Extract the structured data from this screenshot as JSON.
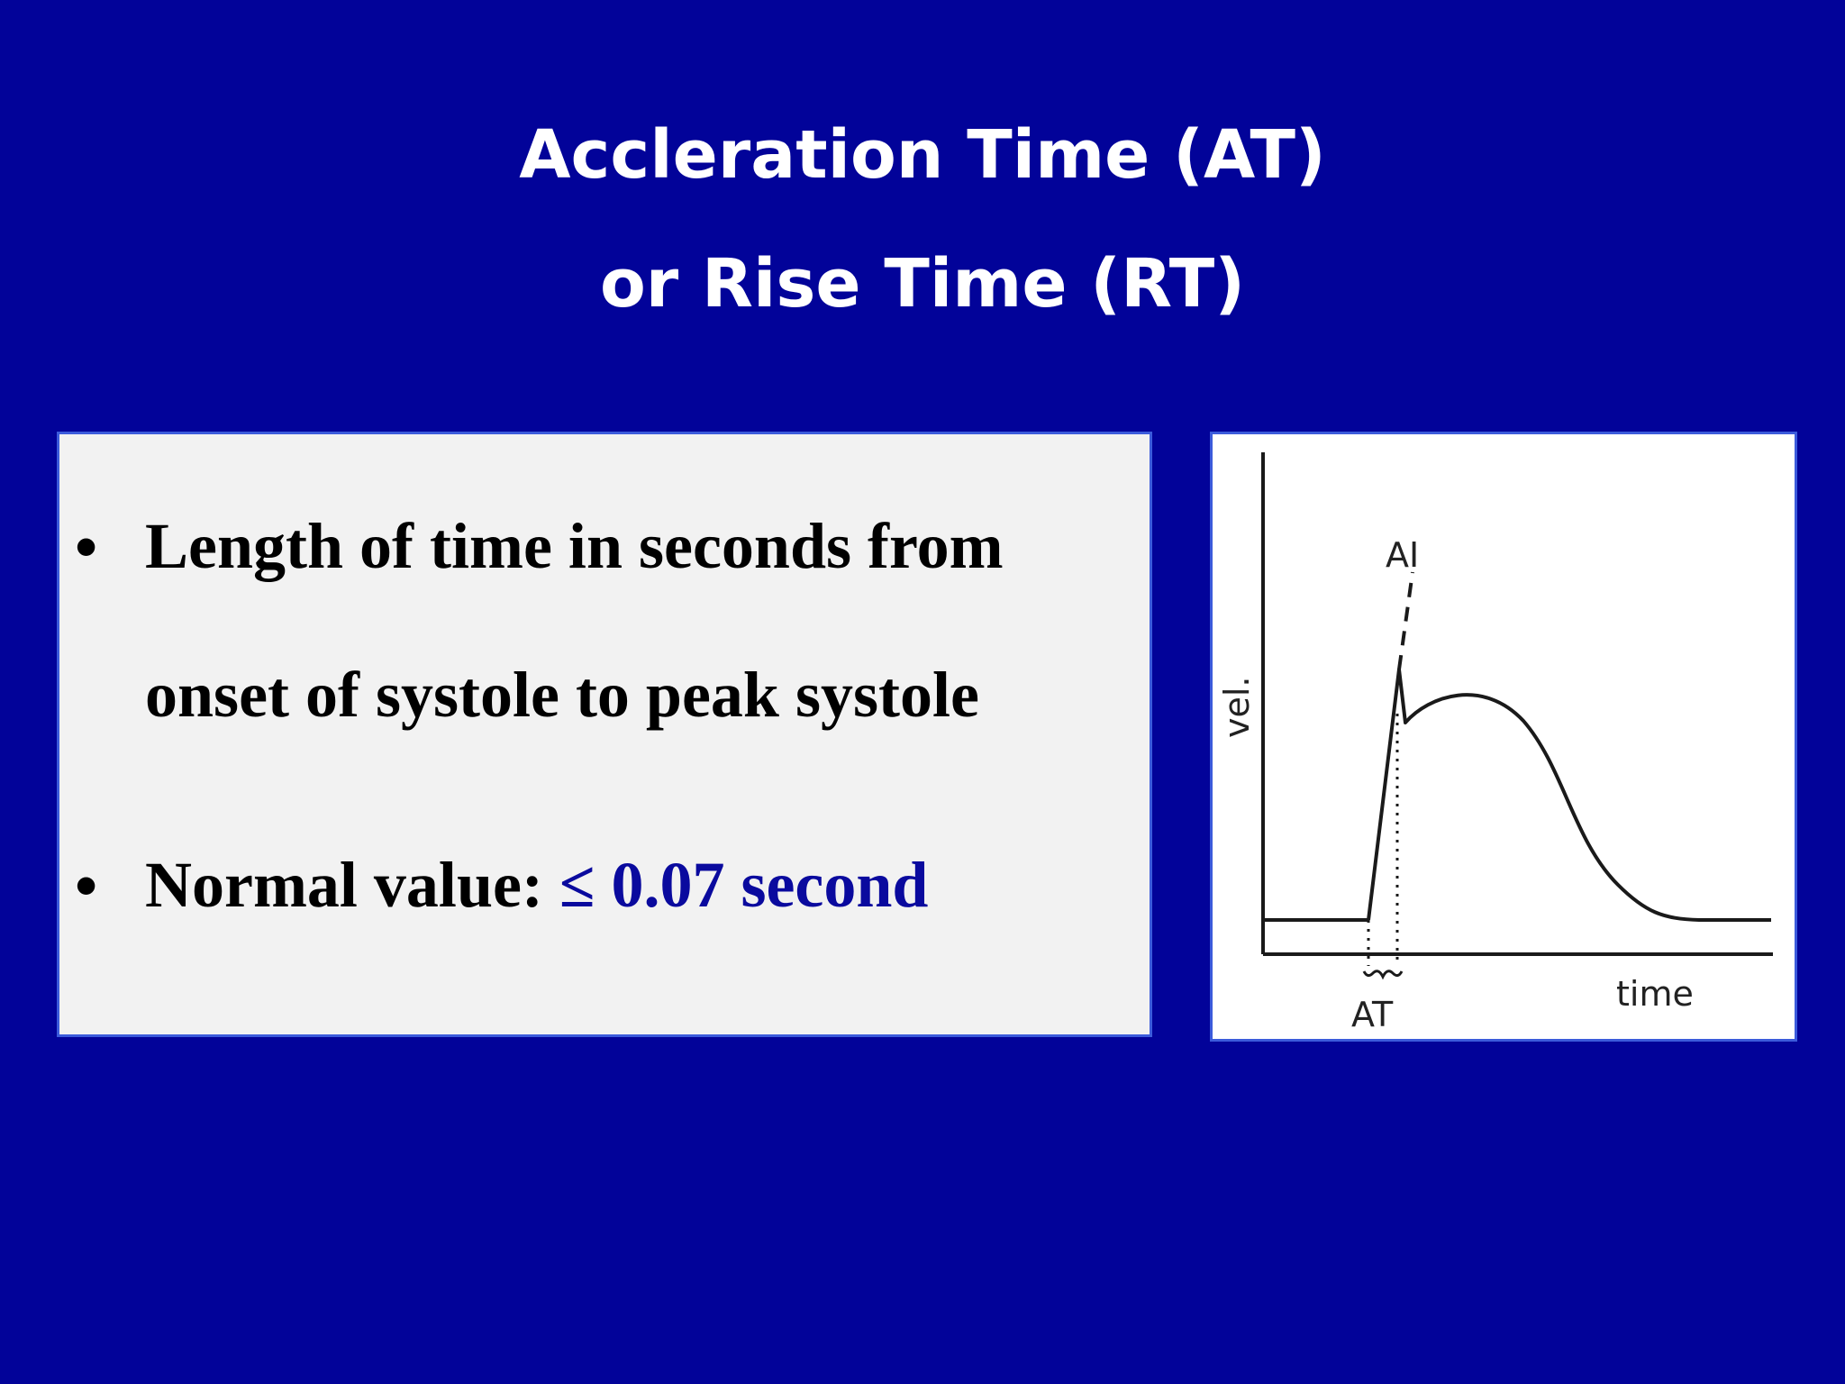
{
  "slide": {
    "title_line_1": "Accleration Time (AT)",
    "title_line_2": "or Rise Time (RT)",
    "background_color": "#020399"
  },
  "bullets": [
    {
      "marker": "•",
      "text": "Length of time in seconds from onset of systole to peak systole"
    },
    {
      "marker": "•",
      "label": "Normal value: ",
      "value": "≤ 0.07 second",
      "value_color": "#0a0a9e"
    }
  ],
  "figure": {
    "labels": {
      "y_axis": "vel.",
      "x_axis": "time",
      "peak": "AI",
      "interval": "AT"
    }
  }
}
